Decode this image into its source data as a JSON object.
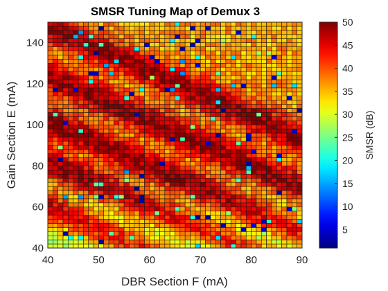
{
  "chart_data": {
    "type": "heatmap",
    "title": "SMSR Tuning Map of Demux 3",
    "xlabel": "DBR Section F (mA)",
    "ylabel": "Gain Section E (mA)",
    "colorbar_label": "SMSR (dB)",
    "colormap": "jet",
    "x_range": [
      40,
      90
    ],
    "y_range": [
      40,
      150
    ],
    "clim": [
      1,
      50
    ],
    "x_ticks": [
      "40",
      "50",
      "60",
      "70",
      "80",
      "90"
    ],
    "y_ticks": [
      "40",
      "60",
      "80",
      "100",
      "120",
      "140"
    ],
    "colorbar_ticks": [
      "5",
      "10",
      "15",
      "20",
      "25",
      "30",
      "35",
      "40",
      "45",
      "50"
    ],
    "grid": {
      "x_start": 40,
      "x_step": 1,
      "x_count": 50,
      "y_start": 40,
      "y_step": 2,
      "y_count": 55
    },
    "value_model": {
      "description": "Diagonal bands of high SMSR running from upper-left to lower-right",
      "band_slope_mA_per_mA": 1.1,
      "band_centers_gain_at_dbr40_mA": [
        148,
        124,
        102,
        82,
        60
      ],
      "peak_db": 49,
      "trough_db": 36
    }
  }
}
